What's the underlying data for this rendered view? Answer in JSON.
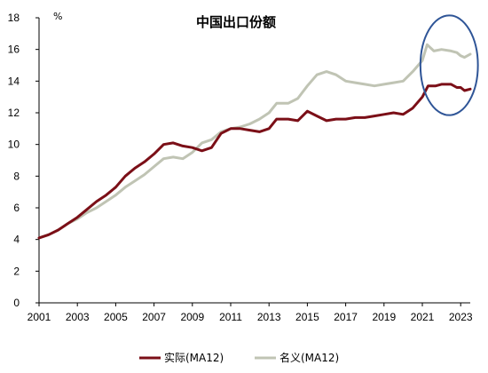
{
  "chart_data": {
    "type": "line",
    "title": "中国出口份额",
    "unit_label": "%",
    "xlim": [
      2001,
      2023.5
    ],
    "ylim": [
      0,
      18
    ],
    "y_ticks": [
      0,
      2,
      4,
      6,
      8,
      10,
      12,
      14,
      16,
      18
    ],
    "x_ticks": [
      2001,
      2003,
      2005,
      2007,
      2009,
      2011,
      2013,
      2015,
      2017,
      2019,
      2021,
      2023
    ],
    "x_tick_labels": [
      "2001",
      "2003",
      "2005",
      "2007",
      "2009",
      "2011",
      "2013",
      "2015",
      "2017",
      "2019",
      "2021",
      "2023"
    ],
    "grid": false,
    "legend_position": "bottom",
    "series": [
      {
        "name": "实际(MA12)",
        "color": "#7b0f17",
        "points": [
          [
            2001.0,
            4.1
          ],
          [
            2001.5,
            4.3
          ],
          [
            2002.0,
            4.6
          ],
          [
            2002.5,
            5.0
          ],
          [
            2003.0,
            5.4
          ],
          [
            2003.5,
            5.9
          ],
          [
            2004.0,
            6.4
          ],
          [
            2004.5,
            6.8
          ],
          [
            2005.0,
            7.3
          ],
          [
            2005.5,
            8.0
          ],
          [
            2006.0,
            8.5
          ],
          [
            2006.5,
            8.9
          ],
          [
            2007.0,
            9.4
          ],
          [
            2007.5,
            10.0
          ],
          [
            2008.0,
            10.1
          ],
          [
            2008.5,
            9.9
          ],
          [
            2009.0,
            9.8
          ],
          [
            2009.5,
            9.6
          ],
          [
            2010.0,
            9.8
          ],
          [
            2010.5,
            10.7
          ],
          [
            2011.0,
            11.0
          ],
          [
            2011.5,
            11.0
          ],
          [
            2012.0,
            10.9
          ],
          [
            2012.5,
            10.8
          ],
          [
            2013.0,
            11.0
          ],
          [
            2013.4,
            11.6
          ],
          [
            2014.0,
            11.6
          ],
          [
            2014.5,
            11.5
          ],
          [
            2015.0,
            12.1
          ],
          [
            2015.5,
            11.8
          ],
          [
            2016.0,
            11.5
          ],
          [
            2016.5,
            11.6
          ],
          [
            2017.0,
            11.6
          ],
          [
            2017.5,
            11.7
          ],
          [
            2018.0,
            11.7
          ],
          [
            2018.5,
            11.8
          ],
          [
            2019.0,
            11.9
          ],
          [
            2019.5,
            12.0
          ],
          [
            2020.0,
            11.9
          ],
          [
            2020.5,
            12.3
          ],
          [
            2021.0,
            13.0
          ],
          [
            2021.3,
            13.7
          ],
          [
            2021.7,
            13.7
          ],
          [
            2022.0,
            13.8
          ],
          [
            2022.5,
            13.8
          ],
          [
            2022.8,
            13.6
          ],
          [
            2023.0,
            13.6
          ],
          [
            2023.2,
            13.4
          ],
          [
            2023.5,
            13.5
          ]
        ]
      },
      {
        "name": "名义(MA12)",
        "color": "#c0c4b4",
        "points": [
          [
            2001.0,
            4.1
          ],
          [
            2001.5,
            4.3
          ],
          [
            2002.0,
            4.6
          ],
          [
            2002.5,
            5.0
          ],
          [
            2003.0,
            5.3
          ],
          [
            2003.5,
            5.7
          ],
          [
            2004.0,
            6.0
          ],
          [
            2004.5,
            6.4
          ],
          [
            2005.0,
            6.8
          ],
          [
            2005.5,
            7.3
          ],
          [
            2006.0,
            7.7
          ],
          [
            2006.5,
            8.1
          ],
          [
            2007.0,
            8.6
          ],
          [
            2007.5,
            9.1
          ],
          [
            2008.0,
            9.2
          ],
          [
            2008.5,
            9.1
          ],
          [
            2009.0,
            9.5
          ],
          [
            2009.5,
            10.1
          ],
          [
            2010.0,
            10.3
          ],
          [
            2010.5,
            10.8
          ],
          [
            2011.0,
            11.0
          ],
          [
            2011.5,
            11.1
          ],
          [
            2012.0,
            11.3
          ],
          [
            2012.5,
            11.6
          ],
          [
            2013.0,
            12.0
          ],
          [
            2013.4,
            12.6
          ],
          [
            2014.0,
            12.6
          ],
          [
            2014.5,
            12.9
          ],
          [
            2015.0,
            13.7
          ],
          [
            2015.5,
            14.4
          ],
          [
            2016.0,
            14.6
          ],
          [
            2016.5,
            14.4
          ],
          [
            2017.0,
            14.0
          ],
          [
            2017.5,
            13.9
          ],
          [
            2018.0,
            13.8
          ],
          [
            2018.5,
            13.7
          ],
          [
            2019.0,
            13.8
          ],
          [
            2019.5,
            13.9
          ],
          [
            2020.0,
            14.0
          ],
          [
            2020.5,
            14.6
          ],
          [
            2021.0,
            15.3
          ],
          [
            2021.25,
            16.3
          ],
          [
            2021.6,
            15.9
          ],
          [
            2022.0,
            16.0
          ],
          [
            2022.5,
            15.9
          ],
          [
            2022.8,
            15.8
          ],
          [
            2023.0,
            15.6
          ],
          [
            2023.2,
            15.5
          ],
          [
            2023.5,
            15.7
          ]
        ]
      }
    ],
    "annotation": {
      "type": "ellipse",
      "color": "#2f5597",
      "x_center": 2022.4,
      "y_center": 15.0,
      "x_radius": 1.5,
      "y_radius": 3.15
    }
  }
}
